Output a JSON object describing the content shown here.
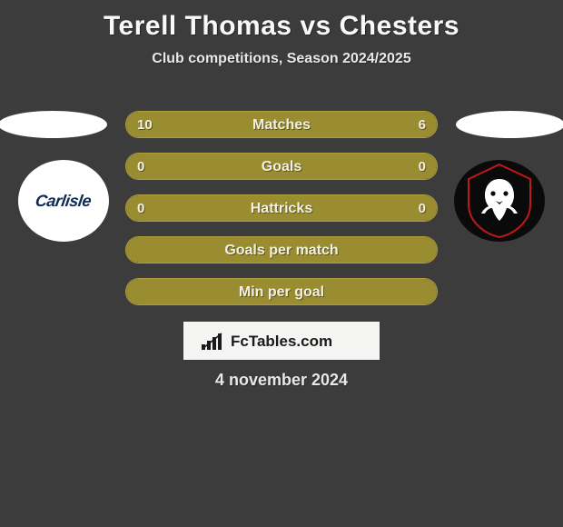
{
  "title": "Terell Thomas vs Chesters",
  "subtitle": "Club competitions, Season 2024/2025",
  "date": "4 november 2024",
  "logo_text": "FcTables.com",
  "colors": {
    "background": "#3c3c3c",
    "pill_border": "#b0a03b",
    "pill_fill": "#9a8c30",
    "text_light": "#f2f0e2",
    "title_color": "#f9f9f8",
    "logo_bg": "#f5f5f3",
    "badge_left_bg": "#ffffff",
    "badge_left_text": "#0e2a55",
    "badge_right_bg": "#0a0a0a",
    "badge_right_accent": "#c01818"
  },
  "badges": {
    "left_text": "Carlisle"
  },
  "rows": [
    {
      "label": "Matches",
      "left": "10",
      "right": "6",
      "left_pct": 62.5,
      "right_pct": 37.5
    },
    {
      "label": "Goals",
      "left": "0",
      "right": "0",
      "left_pct": 50,
      "right_pct": 50
    },
    {
      "label": "Hattricks",
      "left": "0",
      "right": "0",
      "left_pct": 50,
      "right_pct": 50
    },
    {
      "label": "Goals per match",
      "left": "",
      "right": "",
      "left_pct": 100,
      "right_pct": 0
    },
    {
      "label": "Min per goal",
      "left": "",
      "right": "",
      "left_pct": 100,
      "right_pct": 0
    }
  ]
}
